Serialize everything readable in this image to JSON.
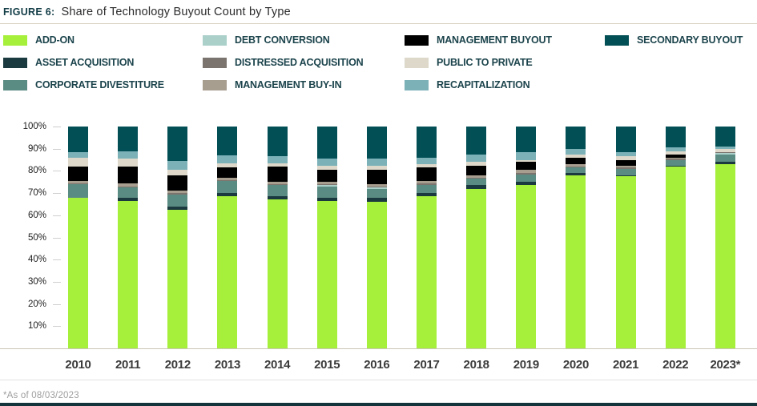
{
  "figure": {
    "label": "FIGURE 6:",
    "title": "Share of Technology Buyout Count by Type",
    "footnote": "*As of 08/03/2023"
  },
  "colors": {
    "header_rule": "#d9d2c3",
    "legend_text": "#1c444c",
    "axis_line": "#ccc5b6",
    "bottom_rule": "#14343c"
  },
  "chart_data": {
    "type": "bar",
    "stacked": true,
    "unit": "percent_share",
    "title": "Share of Technology Buyout Count by Type",
    "categories": [
      "2010",
      "2011",
      "2012",
      "2013",
      "2014",
      "2015",
      "2016",
      "2017",
      "2018",
      "2019",
      "2020",
      "2021",
      "2022",
      "2023*"
    ],
    "series": [
      {
        "name": "ADD-ON",
        "color": "#a6ef3a",
        "values": [
          68,
          66.5,
          62.5,
          68.5,
          67,
          66.5,
          66,
          68.5,
          72,
          73.5,
          78,
          77.5,
          82,
          83
        ]
      },
      {
        "name": "ASSET ACQUISITION",
        "color": "#1b3a40",
        "values": [
          0,
          1.5,
          1.5,
          1.5,
          1.5,
          1.5,
          2,
          1.5,
          1.5,
          1.5,
          1,
          0.5,
          0.5,
          1
        ]
      },
      {
        "name": "CORPORATE DIVESTITURE",
        "color": "#5b8c83",
        "values": [
          6,
          4.5,
          5.5,
          5.5,
          5,
          5,
          4,
          3.5,
          3,
          3.5,
          2.5,
          3,
          2.5,
          3.5
        ]
      },
      {
        "name": "DEBT CONVERSION",
        "color": "#abd0ca",
        "values": [
          0,
          0,
          0,
          0,
          0,
          0.5,
          0.5,
          0,
          0,
          0,
          0,
          0,
          0,
          0.5
        ]
      },
      {
        "name": "DISTRESSED ACQUISITION",
        "color": "#7b746e",
        "values": [
          0.5,
          0.5,
          0.5,
          0.5,
          0.5,
          0.5,
          0.5,
          1,
          0.5,
          0.5,
          0.5,
          0.5,
          0.5,
          0.5
        ]
      },
      {
        "name": "MANAGEMENT BUY-IN",
        "color": "#a89e90",
        "values": [
          1,
          1.5,
          1,
          1,
          1,
          1,
          1,
          1,
          1,
          1.5,
          1,
          1,
          0.5,
          0
        ]
      },
      {
        "name": "MANAGEMENT BUYOUT",
        "color": "#000000",
        "values": [
          6.5,
          7.5,
          7,
          4.5,
          7,
          5.5,
          6.5,
          6,
          4.5,
          3.5,
          3,
          2.5,
          1.5,
          0
        ]
      },
      {
        "name": "PUBLIC TO PRIVATE",
        "color": "#ddd8ca",
        "values": [
          4,
          3.5,
          2.5,
          2,
          1.5,
          2,
          2,
          1.5,
          1.5,
          1,
          1.5,
          1.5,
          1.5,
          1.5
        ]
      },
      {
        "name": "RECAPITALIZATION",
        "color": "#7cb1b8",
        "values": [
          2.5,
          3.5,
          4,
          3.5,
          3,
          3,
          3,
          3,
          3.5,
          3.5,
          2.5,
          2,
          1.5,
          1
        ]
      },
      {
        "name": "SECONDARY BUYOUT",
        "color": "#024f55",
        "values": [
          11.5,
          11,
          15.5,
          13,
          13.5,
          14.5,
          14.5,
          14,
          12.5,
          11.5,
          10,
          11.5,
          9.5,
          9
        ]
      }
    ],
    "yticks": [
      "100%",
      "90%",
      "80%",
      "70%",
      "60%",
      "50%",
      "40%",
      "30%",
      "20%",
      "10%"
    ],
    "ylim": [
      0,
      100
    ],
    "legend_columns": [
      [
        0,
        1,
        2
      ],
      [
        3,
        4,
        5
      ],
      [
        6,
        7,
        8
      ],
      [
        9
      ]
    ],
    "gridlines": false,
    "legend_position": "top"
  }
}
